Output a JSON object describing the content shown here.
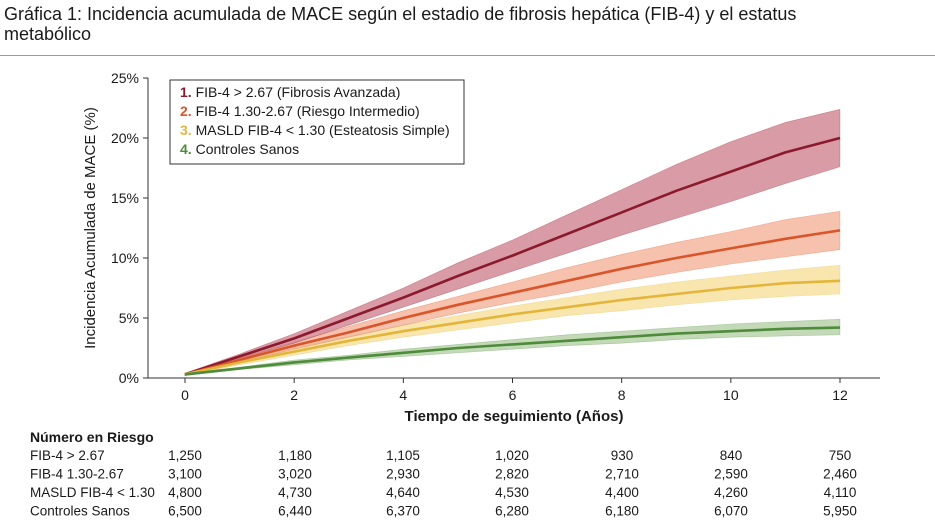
{
  "page_title": "Gráfica 1: Incidencia acumulada de MACE según el estadio de fibrosis hepática (FIB-4) y el estatus metabólico",
  "chart_data": {
    "type": "line",
    "title": "Gráfica 1: Incidencia acumulada de MACE según el estadio de fibrosis hepática (FIB-4) y el estatus metabólico",
    "xlabel": "Tiempo de seguimiento (Años)",
    "ylabel": "Incidencia Acumulada de MACE (%)",
    "xlim": [
      0,
      12
    ],
    "ylim": [
      0,
      25
    ],
    "x_ticks": [
      "0",
      "2",
      "4",
      "6",
      "8",
      "10",
      "12"
    ],
    "y_ticks": [
      "0%",
      "5%",
      "10%",
      "15%",
      "20%",
      "25%"
    ],
    "grid": false,
    "legend_position": "top-left",
    "x": [
      0,
      1,
      2,
      3,
      4,
      5,
      6,
      7,
      8,
      9,
      10,
      11,
      12
    ],
    "series": [
      {
        "number": "1.",
        "name": "FIB-4 > 2.67 (Fibrosis Avanzada)",
        "color": "#8b1a2e",
        "band_color": "#c9707f",
        "values": [
          0.3,
          1.8,
          3.3,
          5.0,
          6.7,
          8.5,
          10.2,
          12.0,
          13.8,
          15.6,
          17.2,
          18.8,
          20.0
        ],
        "lower": [
          0.2,
          1.6,
          2.9,
          4.4,
          5.9,
          7.4,
          8.9,
          10.4,
          11.9,
          13.3,
          14.7,
          16.2,
          17.6
        ],
        "upper": [
          0.4,
          2.0,
          3.7,
          5.6,
          7.5,
          9.6,
          11.5,
          13.6,
          15.7,
          17.8,
          19.7,
          21.3,
          22.4
        ]
      },
      {
        "number": "2.",
        "name": "FIB-4 1.30-2.67 (Riesgo Intermedio)",
        "color": "#d9552a",
        "band_color": "#f2a78a",
        "values": [
          0.3,
          1.5,
          2.7,
          3.8,
          5.0,
          6.1,
          7.1,
          8.1,
          9.1,
          10.0,
          10.8,
          11.6,
          12.3
        ],
        "lower": [
          0.2,
          1.3,
          2.4,
          3.4,
          4.4,
          5.4,
          6.3,
          7.1,
          8.0,
          8.8,
          9.5,
          10.1,
          10.7
        ],
        "upper": [
          0.4,
          1.7,
          3.0,
          4.3,
          5.6,
          6.8,
          8.0,
          9.2,
          10.3,
          11.3,
          12.2,
          13.2,
          13.9
        ]
      },
      {
        "number": "3.",
        "name": "MASLD FIB-4 < 1.30 (Esteatosis Simple)",
        "color": "#e3b53a",
        "band_color": "#f6db8c",
        "values": [
          0.3,
          1.3,
          2.2,
          3.1,
          3.9,
          4.6,
          5.3,
          5.9,
          6.5,
          7.0,
          7.5,
          7.9,
          8.1
        ],
        "lower": [
          0.2,
          1.1,
          1.9,
          2.7,
          3.4,
          4.0,
          4.6,
          5.2,
          5.6,
          6.1,
          6.5,
          6.8,
          7.0
        ],
        "upper": [
          0.4,
          1.5,
          2.5,
          3.5,
          4.4,
          5.2,
          6.0,
          6.7,
          7.4,
          8.0,
          8.5,
          9.0,
          9.4
        ]
      },
      {
        "number": "4.",
        "name": "Controles Sanos",
        "color": "#4e8b3a",
        "band_color": "#a9c99a",
        "values": [
          0.3,
          0.8,
          1.3,
          1.7,
          2.1,
          2.5,
          2.8,
          3.1,
          3.4,
          3.7,
          3.9,
          4.1,
          4.2
        ],
        "lower": [
          0.2,
          0.7,
          1.1,
          1.5,
          1.8,
          2.1,
          2.4,
          2.7,
          2.9,
          3.2,
          3.4,
          3.5,
          3.6
        ],
        "upper": [
          0.4,
          0.9,
          1.5,
          1.9,
          2.4,
          2.8,
          3.2,
          3.6,
          3.9,
          4.2,
          4.5,
          4.7,
          4.9
        ]
      }
    ],
    "risk_table": {
      "title": "Número en Riesgo",
      "columns": [
        "0",
        "2",
        "4",
        "6",
        "8",
        "10",
        "12"
      ],
      "rows": [
        {
          "label": "FIB-4 > 2.67",
          "values": [
            "1,250",
            "1,180",
            "1,105",
            "1,020",
            "930",
            "840",
            "750"
          ]
        },
        {
          "label": "FIB-4 1.30-2.67",
          "values": [
            "3,100",
            "3,020",
            "2,930",
            "2,820",
            "2,710",
            "2,590",
            "2,460"
          ]
        },
        {
          "label": "MASLD FIB-4 < 1.30",
          "values": [
            "4,800",
            "4,730",
            "4,640",
            "4,530",
            "4,400",
            "4,260",
            "4,110"
          ]
        },
        {
          "label": "Controles Sanos",
          "values": [
            "6,500",
            "6,440",
            "6,370",
            "6,280",
            "6,180",
            "6,070",
            "5,950"
          ]
        }
      ]
    }
  }
}
